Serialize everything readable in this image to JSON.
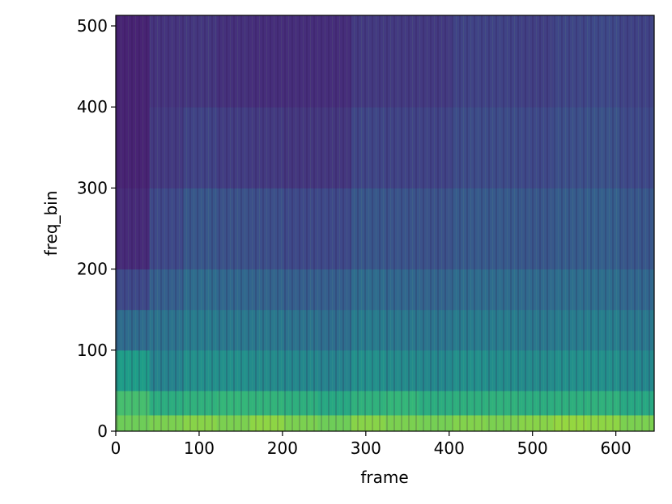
{
  "chart_data": {
    "type": "heatmap",
    "xlabel": "frame",
    "ylabel": "freq_bin",
    "xlim": [
      0,
      646
    ],
    "ylim": [
      0,
      513
    ],
    "xticks": [
      0,
      100,
      200,
      300,
      400,
      500,
      600
    ],
    "yticks": [
      0,
      100,
      200,
      300,
      400,
      500
    ],
    "colormap": "viridis",
    "yedges": [
      0,
      20,
      50,
      100,
      150,
      200,
      300,
      400,
      513
    ],
    "values": [
      [
        0.78,
        0.8,
        0.82,
        0.8,
        0.83,
        0.8,
        0.78,
        0.82,
        0.8,
        0.79,
        0.81,
        0.8,
        0.82,
        0.84,
        0.83,
        0.8
      ],
      [
        0.7,
        0.62,
        0.64,
        0.66,
        0.65,
        0.63,
        0.6,
        0.64,
        0.66,
        0.62,
        0.63,
        0.64,
        0.62,
        0.63,
        0.64,
        0.6
      ],
      [
        0.55,
        0.45,
        0.5,
        0.5,
        0.48,
        0.47,
        0.45,
        0.5,
        0.48,
        0.47,
        0.5,
        0.49,
        0.48,
        0.5,
        0.5,
        0.47
      ],
      [
        0.35,
        0.38,
        0.42,
        0.4,
        0.4,
        0.38,
        0.36,
        0.42,
        0.4,
        0.39,
        0.42,
        0.42,
        0.4,
        0.42,
        0.43,
        0.4
      ],
      [
        0.22,
        0.3,
        0.35,
        0.33,
        0.32,
        0.3,
        0.3,
        0.35,
        0.33,
        0.32,
        0.35,
        0.35,
        0.34,
        0.36,
        0.36,
        0.33
      ],
      [
        0.12,
        0.22,
        0.27,
        0.25,
        0.24,
        0.22,
        0.22,
        0.27,
        0.26,
        0.25,
        0.28,
        0.28,
        0.27,
        0.29,
        0.3,
        0.27
      ],
      [
        0.1,
        0.17,
        0.2,
        0.18,
        0.17,
        0.16,
        0.16,
        0.21,
        0.2,
        0.2,
        0.23,
        0.23,
        0.22,
        0.24,
        0.25,
        0.22
      ],
      [
        0.1,
        0.15,
        0.16,
        0.14,
        0.13,
        0.13,
        0.13,
        0.17,
        0.17,
        0.17,
        0.2,
        0.2,
        0.19,
        0.21,
        0.22,
        0.2
      ]
    ]
  }
}
